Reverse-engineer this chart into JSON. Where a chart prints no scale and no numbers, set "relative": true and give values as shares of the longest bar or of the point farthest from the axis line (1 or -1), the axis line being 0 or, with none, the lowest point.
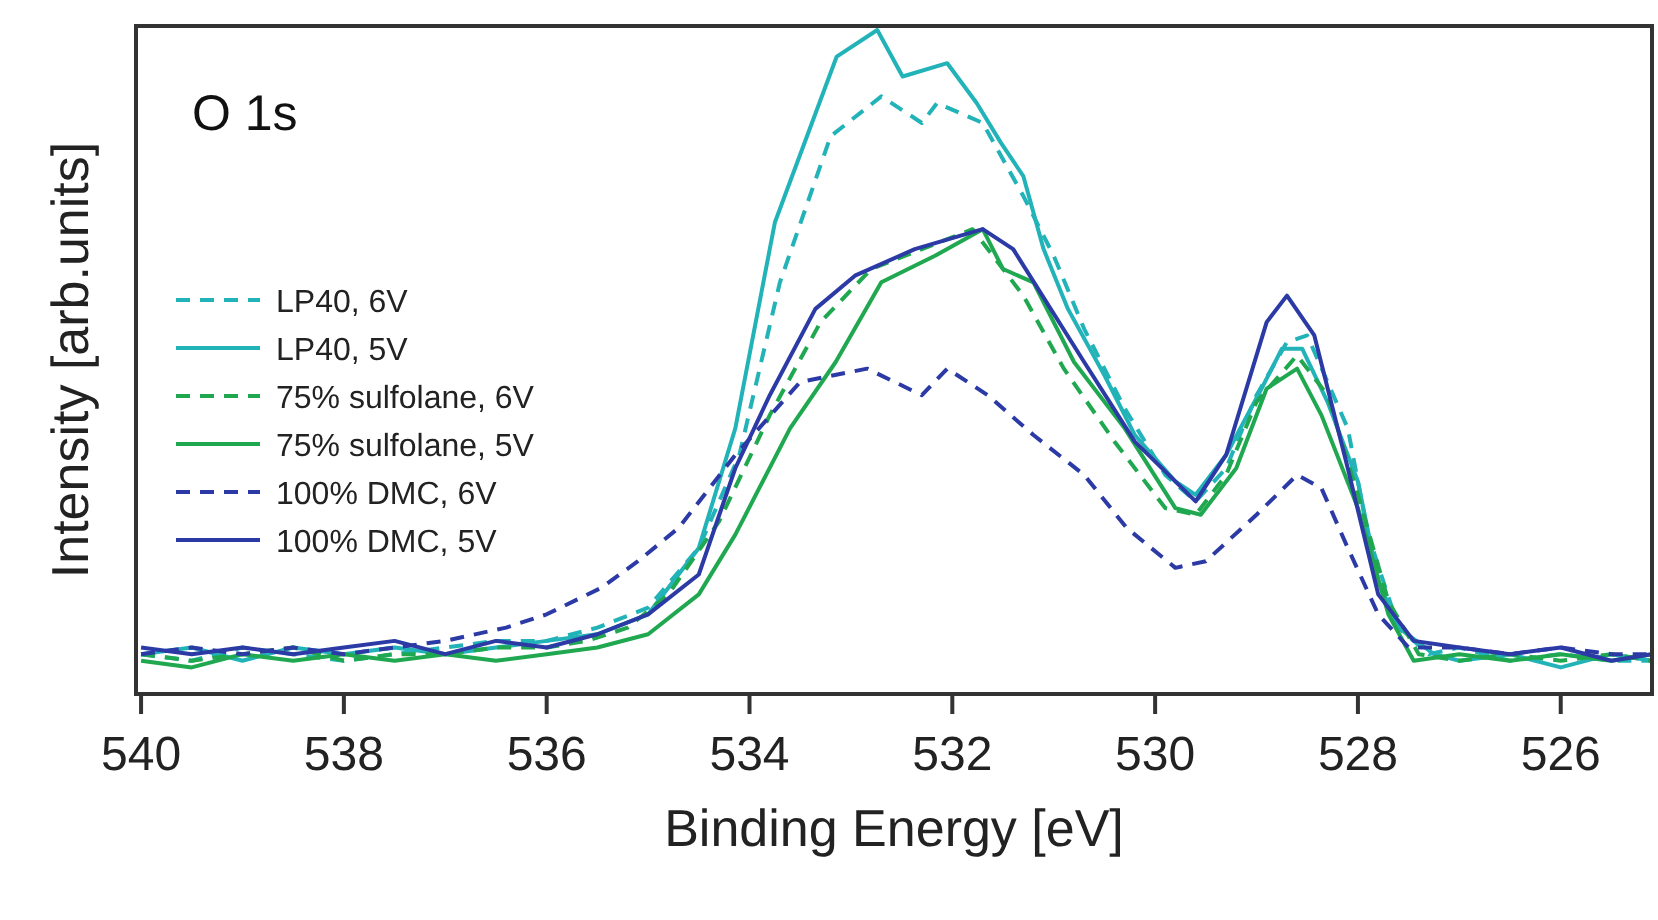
{
  "chart_data": {
    "type": "line",
    "title": "O 1s",
    "xlabel": "Binding Energy [eV]",
    "ylabel": "Intensity [arb.units]",
    "relative": true,
    "xlim": [
      540.05,
      525.1
    ],
    "xticks": [
      540,
      538,
      536,
      534,
      532,
      530,
      528,
      526
    ],
    "legend": "left",
    "tick_labels": "x",
    "series": [
      {
        "name": "LP40, 6V",
        "color": "#22b3b8",
        "line_style": "dashed",
        "x": [
          540,
          539.5,
          539,
          538.5,
          538,
          537.5,
          537,
          536.5,
          536,
          535.5,
          535,
          534.5,
          534.1,
          533.7,
          533.2,
          532.7,
          532.3,
          532.15,
          531.7,
          531.3,
          531.0,
          530.7,
          530.3,
          529.9,
          529.6,
          529.3,
          529.0,
          528.7,
          528.5,
          528.1,
          527.9,
          527.6,
          527.3,
          527,
          526.5,
          526,
          525.5,
          525.1
        ],
        "values": [
          0.06,
          0.05,
          0.07,
          0.06,
          0.05,
          0.06,
          0.07,
          0.08,
          0.08,
          0.1,
          0.13,
          0.22,
          0.36,
          0.62,
          0.84,
          0.9,
          0.86,
          0.89,
          0.86,
          0.75,
          0.66,
          0.55,
          0.43,
          0.33,
          0.29,
          0.34,
          0.45,
          0.53,
          0.54,
          0.4,
          0.24,
          0.1,
          0.06,
          0.07,
          0.05,
          0.06,
          0.05,
          0.05
        ]
      },
      {
        "name": "LP40, 5V",
        "color": "#22b3b8",
        "line_style": "solid",
        "x": [
          540,
          539.5,
          539,
          538.5,
          538,
          537.5,
          537,
          536.5,
          536,
          535.5,
          535,
          534.5,
          534.14,
          533.75,
          533.14,
          532.74,
          532.49,
          532.05,
          531.76,
          531.52,
          531.3,
          531.1,
          530.86,
          530.5,
          530.2,
          529.8,
          529.6,
          529.3,
          528.95,
          528.75,
          528.55,
          528.3,
          528,
          527.8,
          527.6,
          527.25,
          527,
          526.5,
          526,
          525.5,
          525.1
        ],
        "values": [
          0.06,
          0.07,
          0.05,
          0.07,
          0.06,
          0.07,
          0.06,
          0.07,
          0.08,
          0.09,
          0.12,
          0.22,
          0.4,
          0.71,
          0.96,
          1.0,
          0.93,
          0.95,
          0.89,
          0.83,
          0.78,
          0.67,
          0.58,
          0.48,
          0.39,
          0.32,
          0.3,
          0.36,
          0.46,
          0.52,
          0.52,
          0.44,
          0.32,
          0.17,
          0.1,
          0.06,
          0.05,
          0.06,
          0.04,
          0.06,
          0.05
        ]
      },
      {
        "name": "75% sulfolane, 6V",
        "color": "#1fa84f",
        "line_style": "dashed",
        "x": [
          540,
          539.5,
          539,
          538.5,
          538,
          537.5,
          537,
          536.5,
          536,
          535.6,
          535.2,
          534.8,
          534.3,
          533.8,
          533.3,
          532.8,
          532.3,
          531.8,
          531.6,
          531.3,
          530.9,
          530.4,
          529.9,
          529.6,
          529.3,
          529,
          528.6,
          528.3,
          528,
          527.7,
          527.4,
          527,
          526.5,
          526,
          525.5,
          525.1
        ],
        "values": [
          0.06,
          0.05,
          0.06,
          0.07,
          0.05,
          0.06,
          0.06,
          0.07,
          0.07,
          0.08,
          0.1,
          0.15,
          0.26,
          0.42,
          0.56,
          0.64,
          0.67,
          0.7,
          0.66,
          0.6,
          0.49,
          0.38,
          0.28,
          0.27,
          0.33,
          0.44,
          0.51,
          0.45,
          0.3,
          0.14,
          0.06,
          0.05,
          0.06,
          0.05,
          0.06,
          0.05
        ]
      },
      {
        "name": "75% sulfolane, 5V",
        "color": "#1fa84f",
        "line_style": "solid",
        "x": [
          540,
          539.5,
          539,
          538.5,
          538,
          537.5,
          537,
          536.5,
          536,
          535.5,
          535,
          534.5,
          534.14,
          533.6,
          533.15,
          532.7,
          532.17,
          531.7,
          531.5,
          531.2,
          530.8,
          530.3,
          529.8,
          529.55,
          529.2,
          528.9,
          528.6,
          528.36,
          528,
          527.7,
          527.45,
          527,
          526.5,
          526,
          525.5,
          525.1
        ],
        "values": [
          0.05,
          0.04,
          0.06,
          0.05,
          0.06,
          0.05,
          0.06,
          0.05,
          0.06,
          0.07,
          0.09,
          0.15,
          0.24,
          0.4,
          0.5,
          0.62,
          0.66,
          0.7,
          0.64,
          0.62,
          0.5,
          0.4,
          0.28,
          0.27,
          0.34,
          0.46,
          0.49,
          0.42,
          0.28,
          0.12,
          0.05,
          0.06,
          0.05,
          0.06,
          0.05,
          0.06
        ]
      },
      {
        "name": "100% DMC, 6V",
        "color": "#2c3aa6",
        "line_style": "dashed",
        "x": [
          540,
          539.5,
          539,
          538.5,
          538,
          537.5,
          537,
          536.4,
          536,
          535.46,
          535.1,
          534.7,
          534.14,
          533.5,
          532.84,
          532.3,
          532.05,
          531.65,
          531.2,
          530.7,
          530.28,
          529.8,
          529.5,
          529,
          528.6,
          528.36,
          528.1,
          527.8,
          527.5,
          527,
          526.5,
          526,
          525.5,
          525.1
        ],
        "values": [
          0.06,
          0.07,
          0.06,
          0.07,
          0.06,
          0.07,
          0.08,
          0.1,
          0.12,
          0.16,
          0.2,
          0.25,
          0.36,
          0.47,
          0.49,
          0.45,
          0.49,
          0.45,
          0.39,
          0.33,
          0.25,
          0.19,
          0.2,
          0.27,
          0.33,
          0.31,
          0.22,
          0.12,
          0.07,
          0.07,
          0.06,
          0.07,
          0.06,
          0.06
        ]
      },
      {
        "name": "100% DMC, 5V",
        "color": "#2c3aa6",
        "line_style": "solid",
        "x": [
          540,
          539.5,
          539,
          538.5,
          538,
          537.5,
          537,
          536.5,
          536,
          535.5,
          535,
          534.5,
          534.14,
          533.8,
          533.35,
          532.96,
          532.37,
          531.7,
          531.4,
          530.7,
          530.2,
          529.6,
          529.3,
          528.9,
          528.7,
          528.43,
          528.1,
          527.8,
          527.45,
          527,
          526.5,
          526,
          525.5,
          525.1
        ],
        "values": [
          0.07,
          0.06,
          0.07,
          0.06,
          0.07,
          0.08,
          0.06,
          0.08,
          0.07,
          0.09,
          0.12,
          0.18,
          0.34,
          0.45,
          0.58,
          0.63,
          0.67,
          0.7,
          0.67,
          0.5,
          0.38,
          0.29,
          0.36,
          0.56,
          0.6,
          0.54,
          0.34,
          0.15,
          0.08,
          0.07,
          0.06,
          0.07,
          0.05,
          0.06
        ]
      }
    ]
  }
}
